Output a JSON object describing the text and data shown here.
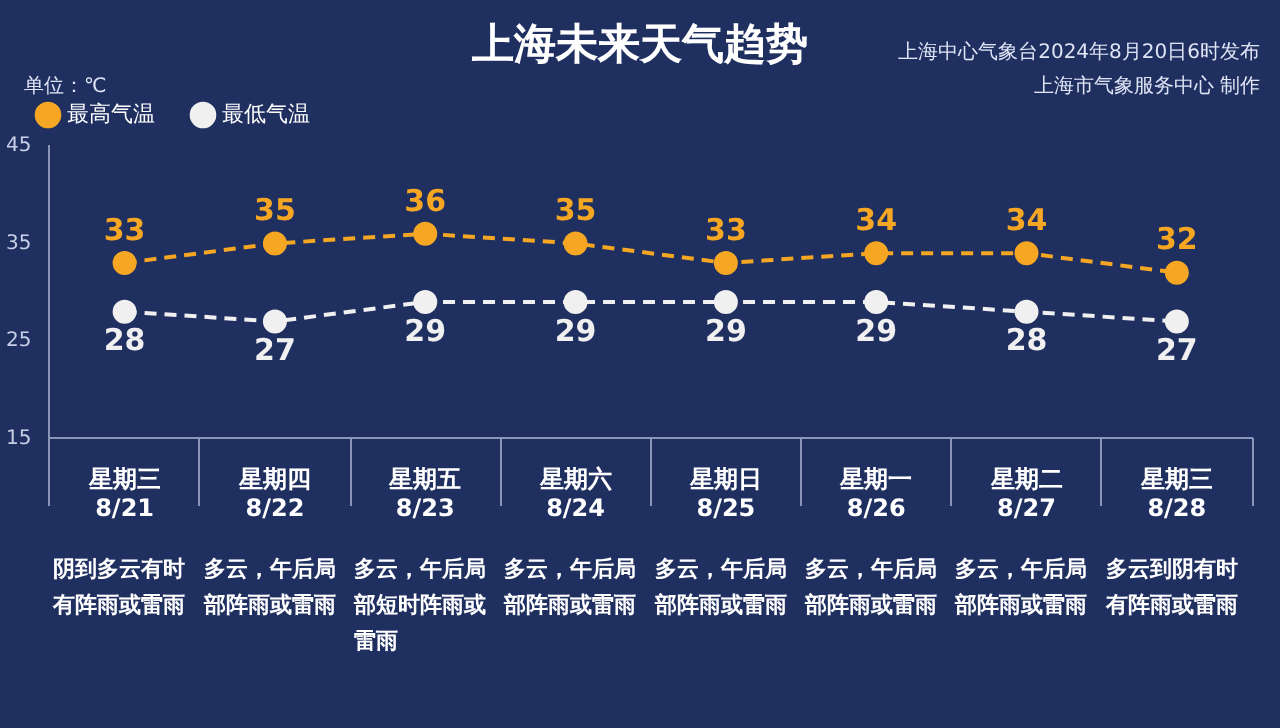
{
  "chart_data": {
    "type": "line",
    "title": "上海未来天气趋势",
    "ylabel": "单位：℃",
    "categories": [
      "星期三\n8/21",
      "星期四\n8/22",
      "星期五\n8/23",
      "星期六\n8/24",
      "星期日\n8/25",
      "星期一\n8/26",
      "星期二\n8/27",
      "星期三\n8/28"
    ],
    "series": [
      {
        "name": "最高气温",
        "color": "#f5a623",
        "values": [
          33,
          35,
          36,
          35,
          33,
          34,
          34,
          32
        ]
      },
      {
        "name": "最低气温",
        "color": "#f0f0f0",
        "values": [
          28,
          27,
          29,
          29,
          29,
          29,
          28,
          27
        ]
      }
    ],
    "ylim": [
      15,
      45
    ],
    "yticks": [
      15,
      25,
      35,
      45
    ],
    "data_labels": true,
    "legend": "top left",
    "marker": "circle",
    "line_style": "dashed",
    "annotations": [
      "上海中心气象台2024年8月20日6时发布",
      "上海市气象服务中心 制作",
      "阴到多云有时有阵雨或雷雨",
      "多云，午后局部阵雨或雷雨",
      "多云，午后局部短时阵雨或雷雨",
      "多云，午后局部阵雨或雷雨",
      "多云，午后局部阵雨或雷雨",
      "多云，午后局部阵雨或雷雨",
      "多云，午后局部阵雨或雷雨",
      "多云到阴有时有阵雨或雷雨"
    ]
  }
}
